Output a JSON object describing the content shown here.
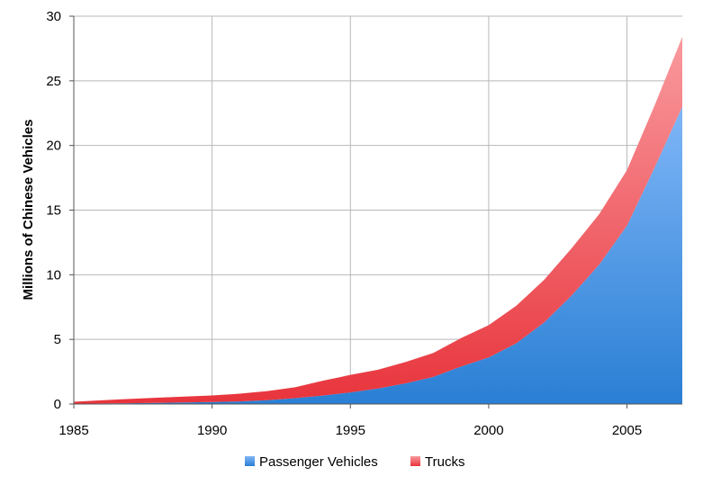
{
  "chart_data": {
    "type": "area",
    "stacked": true,
    "title": "",
    "xlabel": "",
    "ylabel": "Millions of Chinese Vehicles",
    "xlim": [
      1985,
      2007
    ],
    "ylim": [
      0,
      30
    ],
    "x_ticks": [
      "1985",
      "1990",
      "1995",
      "2000",
      "2005"
    ],
    "y_ticks": [
      "0",
      "5",
      "10",
      "15",
      "20",
      "25",
      "30"
    ],
    "grid": true,
    "legend_position": "bottom",
    "x": [
      1985,
      1986,
      1987,
      1988,
      1989,
      1990,
      1991,
      1992,
      1993,
      1994,
      1995,
      1996,
      1997,
      1998,
      1999,
      2000,
      2001,
      2002,
      2003,
      2004,
      2005,
      2006,
      2007
    ],
    "series": [
      {
        "name": "Passenger Vehicles",
        "color_top": "#7fb6f7",
        "color_bottom": "#2a7fd4",
        "values": [
          0.02,
          0.04,
          0.06,
          0.09,
          0.12,
          0.16,
          0.2,
          0.3,
          0.45,
          0.65,
          0.9,
          1.2,
          1.6,
          2.1,
          2.9,
          3.6,
          4.7,
          6.3,
          8.4,
          10.8,
          13.8,
          18.3,
          23.0
        ]
      },
      {
        "name": "Trucks",
        "color_top": "#f99a9e",
        "color_bottom": "#e8343c",
        "values": [
          0.15,
          0.25,
          0.33,
          0.4,
          0.45,
          0.5,
          0.6,
          0.7,
          0.85,
          1.15,
          1.35,
          1.45,
          1.65,
          1.85,
          2.2,
          2.5,
          2.9,
          3.3,
          3.65,
          3.9,
          4.3,
          4.8,
          5.4
        ]
      }
    ]
  }
}
